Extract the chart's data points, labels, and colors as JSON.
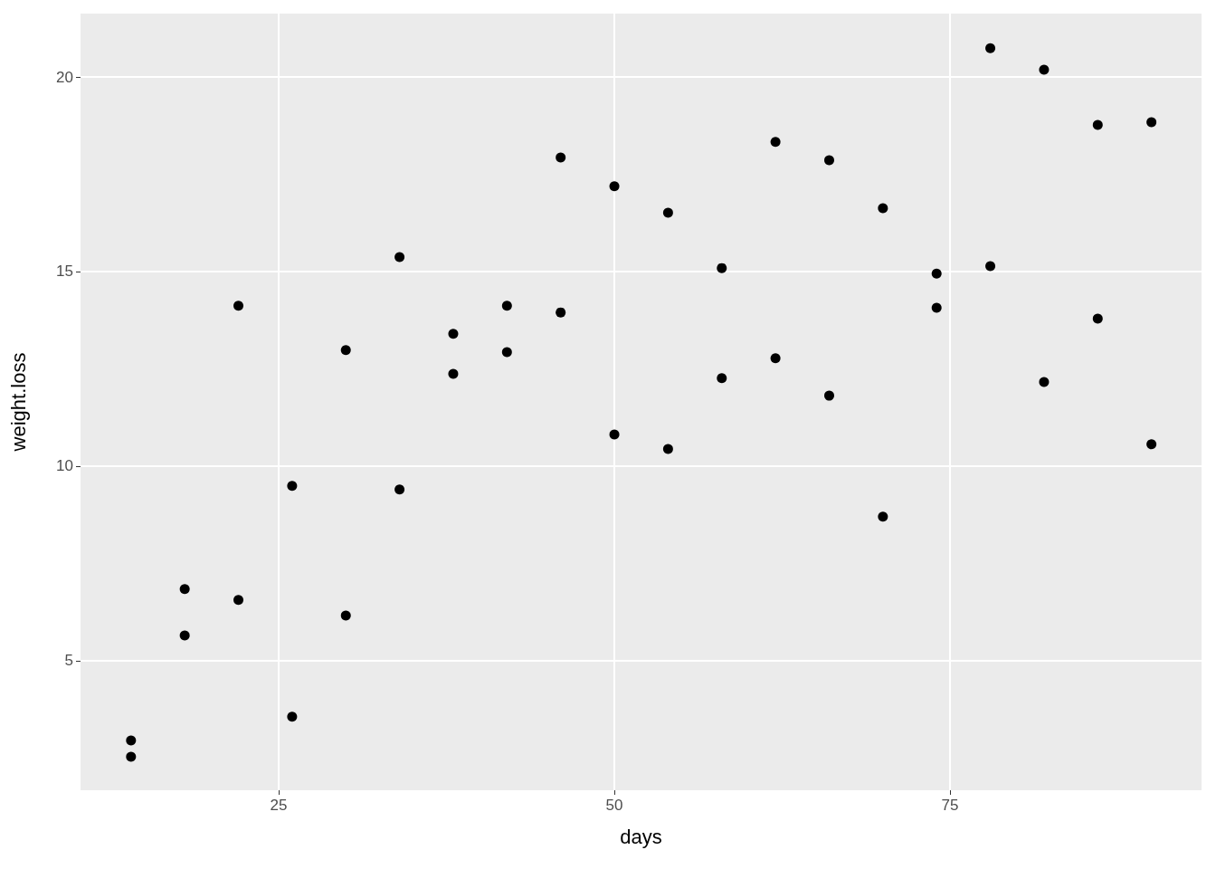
{
  "chart_data": {
    "type": "scatter",
    "xlabel": "days",
    "ylabel": "weight.loss",
    "x": [
      14,
      14,
      18,
      18,
      22,
      22,
      26,
      26,
      30,
      30,
      34,
      34,
      38,
      38,
      42,
      42,
      46,
      46,
      50,
      50,
      54,
      54,
      58,
      58,
      62,
      62,
      66,
      66,
      70,
      70,
      74,
      74,
      78,
      78,
      82,
      82,
      86,
      86,
      90,
      90
    ],
    "values": [
      2.95,
      2.53,
      6.84,
      5.65,
      14.12,
      6.56,
      9.49,
      3.56,
      12.98,
      6.16,
      15.37,
      9.4,
      13.4,
      12.37,
      14.12,
      12.93,
      17.93,
      13.95,
      17.19,
      10.81,
      16.51,
      10.44,
      15.09,
      12.26,
      18.33,
      12.77,
      17.86,
      11.81,
      16.63,
      8.7,
      14.95,
      14.07,
      20.74,
      15.14,
      20.19,
      12.16,
      18.77,
      13.79,
      18.84,
      10.56
    ],
    "color": "#000000",
    "marker": "circle",
    "grid": true,
    "xlim": [
      10.24,
      93.73
    ],
    "ylim": [
      1.67,
      21.63
    ],
    "xticks": [
      25,
      50,
      75
    ],
    "yticks": [
      5,
      10,
      15,
      20
    ]
  }
}
